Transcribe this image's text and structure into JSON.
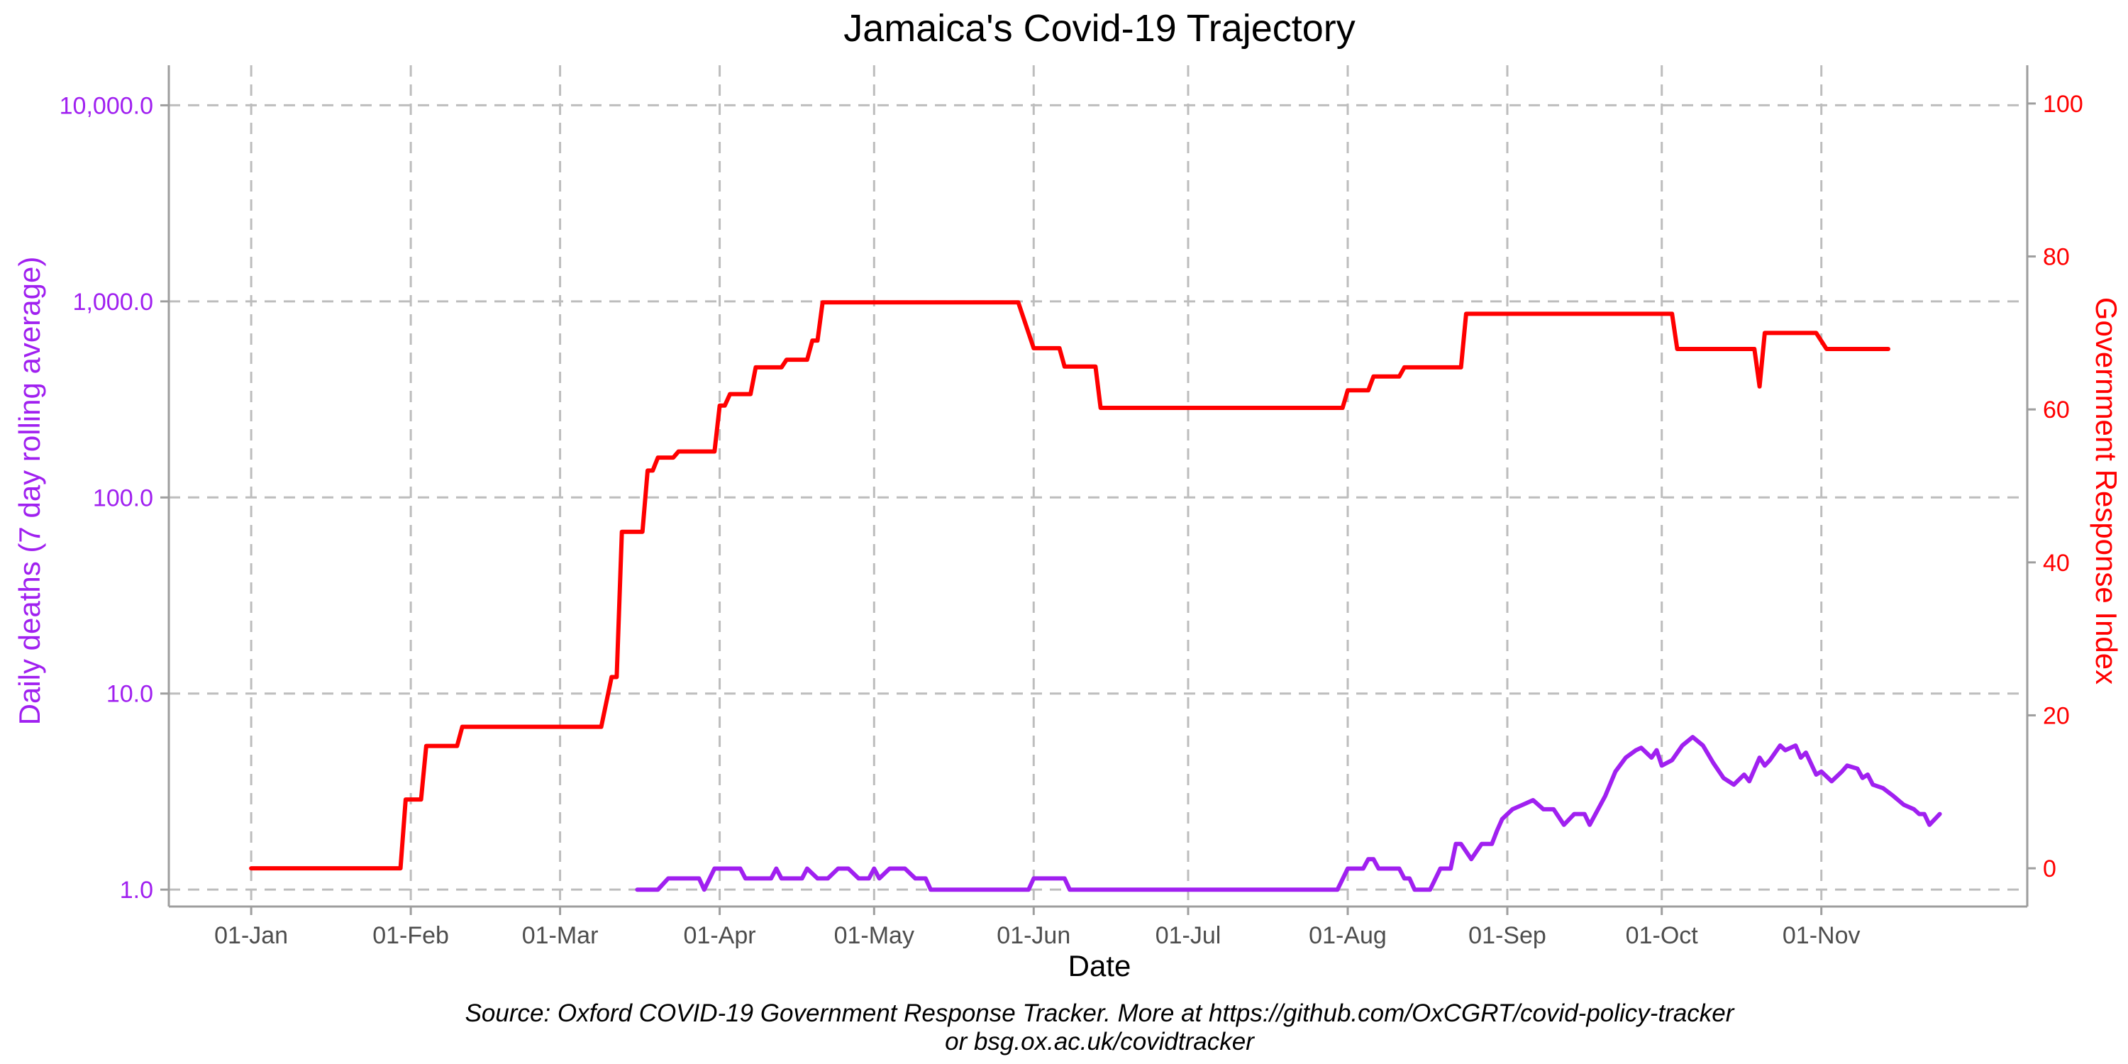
{
  "chart_data": {
    "type": "line",
    "title": "Jamaica's Covid-19 Trajectory",
    "xlabel": "Date",
    "ylabel_left": "Daily deaths (7 day rolling average)",
    "ylabel_right": "Government Response Index",
    "caption": [
      "Source: Oxford COVID-19 Government Response Tracker. More at https://github.com/OxCGRT/covid-policy-tracker",
      "or bsg.ox.ac.uk/covidtracker"
    ],
    "x_ticks": [
      {
        "date": "2020-01-01",
        "label": "01-Jan"
      },
      {
        "date": "2020-02-01",
        "label": "01-Feb"
      },
      {
        "date": "2020-03-01",
        "label": "01-Mar"
      },
      {
        "date": "2020-04-01",
        "label": "01-Apr"
      },
      {
        "date": "2020-05-01",
        "label": "01-May"
      },
      {
        "date": "2020-06-01",
        "label": "01-Jun"
      },
      {
        "date": "2020-07-01",
        "label": "01-Jul"
      },
      {
        "date": "2020-08-01",
        "label": "01-Aug"
      },
      {
        "date": "2020-09-01",
        "label": "01-Sep"
      },
      {
        "date": "2020-10-01",
        "label": "01-Oct"
      },
      {
        "date": "2020-11-01",
        "label": "01-Nov"
      }
    ],
    "xlim": [
      "2019-12-16",
      "2020-12-11"
    ],
    "y_left": {
      "scale": "log",
      "lim": [
        0.82,
        16000
      ],
      "ticks": [
        {
          "value": 1,
          "label": "1.0"
        },
        {
          "value": 10,
          "label": "10.0"
        },
        {
          "value": 100,
          "label": "100.0"
        },
        {
          "value": 1000,
          "label": "1,000.0"
        },
        {
          "value": 10000,
          "label": "10,000.0"
        }
      ]
    },
    "y_right": {
      "scale": "linear",
      "lim": [
        -5,
        105
      ],
      "ticks": [
        {
          "value": 0,
          "label": "0"
        },
        {
          "value": 20,
          "label": "20"
        },
        {
          "value": 40,
          "label": "40"
        },
        {
          "value": 60,
          "label": "60"
        },
        {
          "value": 80,
          "label": "80"
        },
        {
          "value": 100,
          "label": "100"
        }
      ]
    },
    "grid": true,
    "series": [
      {
        "axis": "right",
        "color": "#ff0000",
        "points": [
          [
            "2020-01-01",
            0
          ],
          [
            "2020-01-30",
            0
          ],
          [
            "2020-01-31",
            9
          ],
          [
            "2020-02-03",
            9
          ],
          [
            "2020-02-04",
            16
          ],
          [
            "2020-02-10",
            16
          ],
          [
            "2020-02-11",
            18.5
          ],
          [
            "2020-03-09",
            18.5
          ],
          [
            "2020-03-11",
            25
          ],
          [
            "2020-03-12",
            25
          ],
          [
            "2020-03-13",
            44
          ],
          [
            "2020-03-17",
            44
          ],
          [
            "2020-03-18",
            52
          ],
          [
            "2020-03-19",
            52
          ],
          [
            "2020-03-20",
            53.7
          ],
          [
            "2020-03-23",
            53.7
          ],
          [
            "2020-03-24",
            54.5
          ],
          [
            "2020-03-31",
            54.5
          ],
          [
            "2020-04-01",
            60.5
          ],
          [
            "2020-04-02",
            60.5
          ],
          [
            "2020-04-03",
            62
          ],
          [
            "2020-04-07",
            62
          ],
          [
            "2020-04-08",
            65.5
          ],
          [
            "2020-04-13",
            65.5
          ],
          [
            "2020-04-14",
            66.5
          ],
          [
            "2020-04-18",
            66.5
          ],
          [
            "2020-04-19",
            69
          ],
          [
            "2020-04-20",
            69
          ],
          [
            "2020-04-21",
            74
          ],
          [
            "2020-05-29",
            74
          ],
          [
            "2020-06-01",
            68
          ],
          [
            "2020-06-06",
            68
          ],
          [
            "2020-06-07",
            65.6
          ],
          [
            "2020-06-13",
            65.6
          ],
          [
            "2020-06-14",
            60.2
          ],
          [
            "2020-07-31",
            60.2
          ],
          [
            "2020-08-01",
            62.5
          ],
          [
            "2020-08-05",
            62.5
          ],
          [
            "2020-08-06",
            64.3
          ],
          [
            "2020-08-11",
            64.3
          ],
          [
            "2020-08-12",
            65.5
          ],
          [
            "2020-08-23",
            65.5
          ],
          [
            "2020-08-24",
            72.5
          ],
          [
            "2020-10-03",
            72.5
          ],
          [
            "2020-10-04",
            67.9
          ],
          [
            "2020-10-19",
            67.9
          ],
          [
            "2020-10-20",
            63
          ],
          [
            "2020-10-21",
            70
          ],
          [
            "2020-10-31",
            70
          ],
          [
            "2020-11-02",
            67.9
          ],
          [
            "2020-11-14",
            67.9
          ]
        ]
      },
      {
        "axis": "left",
        "color": "#a020f0",
        "points": [
          [
            "2020-03-16",
            1.0
          ],
          [
            "2020-03-20",
            1.0
          ],
          [
            "2020-03-22",
            1.14
          ],
          [
            "2020-03-28",
            1.14
          ],
          [
            "2020-03-29",
            1.0
          ],
          [
            "2020-03-31",
            1.28
          ],
          [
            "2020-04-05",
            1.28
          ],
          [
            "2020-04-06",
            1.14
          ],
          [
            "2020-04-11",
            1.14
          ],
          [
            "2020-04-12",
            1.28
          ],
          [
            "2020-04-13",
            1.14
          ],
          [
            "2020-04-17",
            1.14
          ],
          [
            "2020-04-18",
            1.28
          ],
          [
            "2020-04-20",
            1.14
          ],
          [
            "2020-04-22",
            1.14
          ],
          [
            "2020-04-24",
            1.28
          ],
          [
            "2020-04-26",
            1.28
          ],
          [
            "2020-04-28",
            1.14
          ],
          [
            "2020-04-30",
            1.14
          ],
          [
            "2020-05-01",
            1.28
          ],
          [
            "2020-05-02",
            1.14
          ],
          [
            "2020-05-04",
            1.28
          ],
          [
            "2020-05-07",
            1.28
          ],
          [
            "2020-05-09",
            1.14
          ],
          [
            "2020-05-11",
            1.14
          ],
          [
            "2020-05-12",
            1.0
          ],
          [
            "2020-05-31",
            1.0
          ],
          [
            "2020-06-01",
            1.14
          ],
          [
            "2020-06-07",
            1.14
          ],
          [
            "2020-06-08",
            1.0
          ],
          [
            "2020-07-30",
            1.0
          ],
          [
            "2020-08-01",
            1.28
          ],
          [
            "2020-08-04",
            1.28
          ],
          [
            "2020-08-05",
            1.43
          ],
          [
            "2020-08-06",
            1.43
          ],
          [
            "2020-08-07",
            1.28
          ],
          [
            "2020-08-11",
            1.28
          ],
          [
            "2020-08-12",
            1.14
          ],
          [
            "2020-08-13",
            1.14
          ],
          [
            "2020-08-14",
            1.0
          ],
          [
            "2020-08-17",
            1.0
          ],
          [
            "2020-08-19",
            1.28
          ],
          [
            "2020-08-21",
            1.28
          ],
          [
            "2020-08-22",
            1.71
          ],
          [
            "2020-08-23",
            1.71
          ],
          [
            "2020-08-25",
            1.43
          ],
          [
            "2020-08-27",
            1.71
          ],
          [
            "2020-08-29",
            1.71
          ],
          [
            "2020-08-30",
            2.0
          ],
          [
            "2020-08-31",
            2.29
          ],
          [
            "2020-09-02",
            2.57
          ],
          [
            "2020-09-04",
            2.71
          ],
          [
            "2020-09-06",
            2.86
          ],
          [
            "2020-09-08",
            2.57
          ],
          [
            "2020-09-10",
            2.57
          ],
          [
            "2020-09-12",
            2.14
          ],
          [
            "2020-09-14",
            2.43
          ],
          [
            "2020-09-16",
            2.43
          ],
          [
            "2020-09-17",
            2.14
          ],
          [
            "2020-09-20",
            3.0
          ],
          [
            "2020-09-22",
            4.0
          ],
          [
            "2020-09-24",
            4.71
          ],
          [
            "2020-09-26",
            5.14
          ],
          [
            "2020-09-27",
            5.29
          ],
          [
            "2020-09-29",
            4.71
          ],
          [
            "2020-09-30",
            5.14
          ],
          [
            "2020-10-01",
            4.29
          ],
          [
            "2020-10-03",
            4.57
          ],
          [
            "2020-10-05",
            5.43
          ],
          [
            "2020-10-07",
            6.0
          ],
          [
            "2020-10-09",
            5.43
          ],
          [
            "2020-10-11",
            4.43
          ],
          [
            "2020-10-13",
            3.71
          ],
          [
            "2020-10-15",
            3.43
          ],
          [
            "2020-10-17",
            3.86
          ],
          [
            "2020-10-18",
            3.57
          ],
          [
            "2020-10-20",
            4.71
          ],
          [
            "2020-10-21",
            4.29
          ],
          [
            "2020-10-22",
            4.57
          ],
          [
            "2020-10-24",
            5.43
          ],
          [
            "2020-10-25",
            5.14
          ],
          [
            "2020-10-27",
            5.43
          ],
          [
            "2020-10-28",
            4.71
          ],
          [
            "2020-10-29",
            5.0
          ],
          [
            "2020-10-31",
            3.86
          ],
          [
            "2020-11-01",
            4.0
          ],
          [
            "2020-11-03",
            3.57
          ],
          [
            "2020-11-05",
            4.0
          ],
          [
            "2020-11-06",
            4.29
          ],
          [
            "2020-11-08",
            4.14
          ],
          [
            "2020-11-09",
            3.71
          ],
          [
            "2020-11-10",
            3.86
          ],
          [
            "2020-11-11",
            3.43
          ],
          [
            "2020-11-13",
            3.29
          ],
          [
            "2020-11-15",
            3.0
          ],
          [
            "2020-11-17",
            2.71
          ],
          [
            "2020-11-19",
            2.57
          ],
          [
            "2020-11-20",
            2.43
          ],
          [
            "2020-11-21",
            2.43
          ],
          [
            "2020-11-22",
            2.14
          ],
          [
            "2020-11-24",
            2.43
          ]
        ]
      }
    ]
  }
}
